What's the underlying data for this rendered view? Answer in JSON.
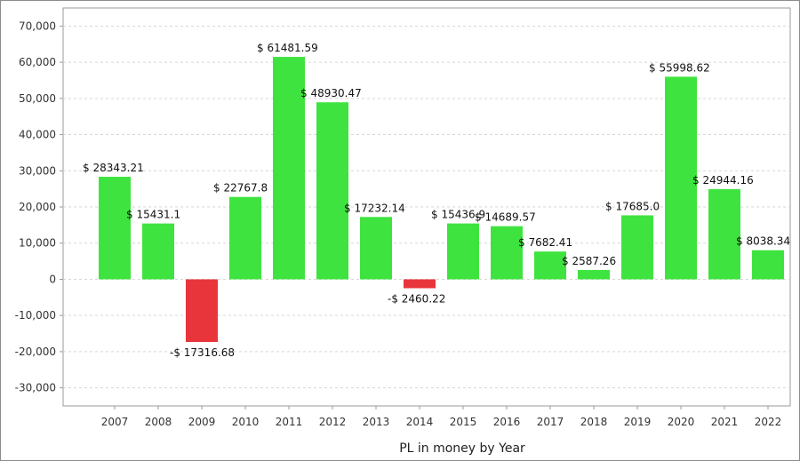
{
  "chart_data": {
    "type": "bar",
    "title": "",
    "xlabel": "PL in money by Year",
    "ylabel": "",
    "ylim": [
      -35000,
      75000
    ],
    "yticks": [
      -30000,
      -20000,
      -10000,
      0,
      10000,
      20000,
      30000,
      40000,
      50000,
      60000,
      70000
    ],
    "ytick_labels": [
      "-30,000",
      "-20,000",
      "-10,000",
      "0",
      "10,000",
      "20,000",
      "30,000",
      "40,000",
      "50,000",
      "60,000",
      "70,000"
    ],
    "categories": [
      "2007",
      "2008",
      "2009",
      "2010",
      "2011",
      "2012",
      "2013",
      "2014",
      "2015",
      "2016",
      "2017",
      "2018",
      "2019",
      "2020",
      "2021",
      "2022"
    ],
    "values": [
      28343.21,
      15431.1,
      -17316.68,
      22767.8,
      61481.59,
      48930.47,
      17232.14,
      -2460.22,
      15436.9,
      14689.57,
      7682.41,
      2587.26,
      17685.0,
      55998.62,
      24944.16,
      8038.34
    ],
    "data_labels": [
      "$ 28343.21",
      "$ 15431.1",
      "-$ 17316.68",
      "$ 22767.8",
      "$ 61481.59",
      "$ 48930.47",
      "$ 17232.14",
      "-$ 2460.22",
      "$ 15436.9",
      "$ 14689.57",
      "$ 7682.41",
      "$ 2587.26",
      "$ 17685.0",
      "$ 55998.62",
      "$ 24944.16",
      "$ 8038.34"
    ],
    "colors": {
      "positive": "#3fe33f",
      "negative": "#e8353b",
      "grid": "#d6d6d6",
      "axis": "#9a9a9a"
    },
    "grid": true,
    "legend": "none"
  }
}
